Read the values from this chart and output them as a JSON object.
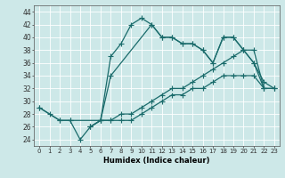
{
  "xlabel": "Humidex (Indice chaleur)",
  "bg_color": "#cde8e8",
  "grid_color": "#b8d8d8",
  "line_color": "#1a6b6b",
  "xlim": [
    -0.5,
    23.5
  ],
  "ylim": [
    23,
    45
  ],
  "yticks": [
    24,
    26,
    28,
    30,
    32,
    34,
    36,
    38,
    40,
    42,
    44
  ],
  "xticks": [
    0,
    1,
    2,
    3,
    4,
    5,
    6,
    7,
    8,
    9,
    10,
    11,
    12,
    13,
    14,
    15,
    16,
    17,
    18,
    19,
    20,
    21,
    22,
    23
  ],
  "line1_x": [
    0,
    1,
    2,
    3,
    4,
    5,
    6,
    7,
    8,
    9,
    10,
    11,
    12,
    13,
    14,
    15,
    16,
    17,
    18,
    19,
    20,
    21,
    22
  ],
  "line1_y": [
    29,
    28,
    27,
    27,
    24,
    26,
    27,
    37,
    39,
    42,
    43,
    42,
    40,
    40,
    39,
    39,
    38,
    36,
    40,
    40,
    38,
    36,
    32
  ],
  "line2_x": [
    0,
    2,
    3,
    6,
    7,
    11,
    12,
    13,
    14,
    15,
    16,
    17,
    18,
    19,
    20,
    21,
    22,
    23
  ],
  "line2_y": [
    29,
    27,
    27,
    27,
    34,
    42,
    40,
    40,
    39,
    39,
    38,
    36,
    40,
    40,
    38,
    36,
    33,
    32
  ],
  "line3_x": [
    5,
    6,
    7,
    8,
    9,
    10,
    11,
    12,
    13,
    14,
    15,
    16,
    17,
    18,
    19,
    20,
    21,
    22,
    23
  ],
  "line3_y": [
    26,
    27,
    27,
    28,
    28,
    29,
    30,
    31,
    32,
    32,
    33,
    34,
    35,
    36,
    37,
    38,
    38,
    32,
    32
  ],
  "line4_x": [
    5,
    6,
    7,
    8,
    9,
    10,
    11,
    12,
    13,
    14,
    15,
    16,
    17,
    18,
    19,
    20,
    21,
    22,
    23
  ],
  "line4_y": [
    26,
    27,
    27,
    27,
    27,
    28,
    29,
    30,
    31,
    31,
    32,
    32,
    33,
    34,
    34,
    34,
    34,
    32,
    32
  ]
}
